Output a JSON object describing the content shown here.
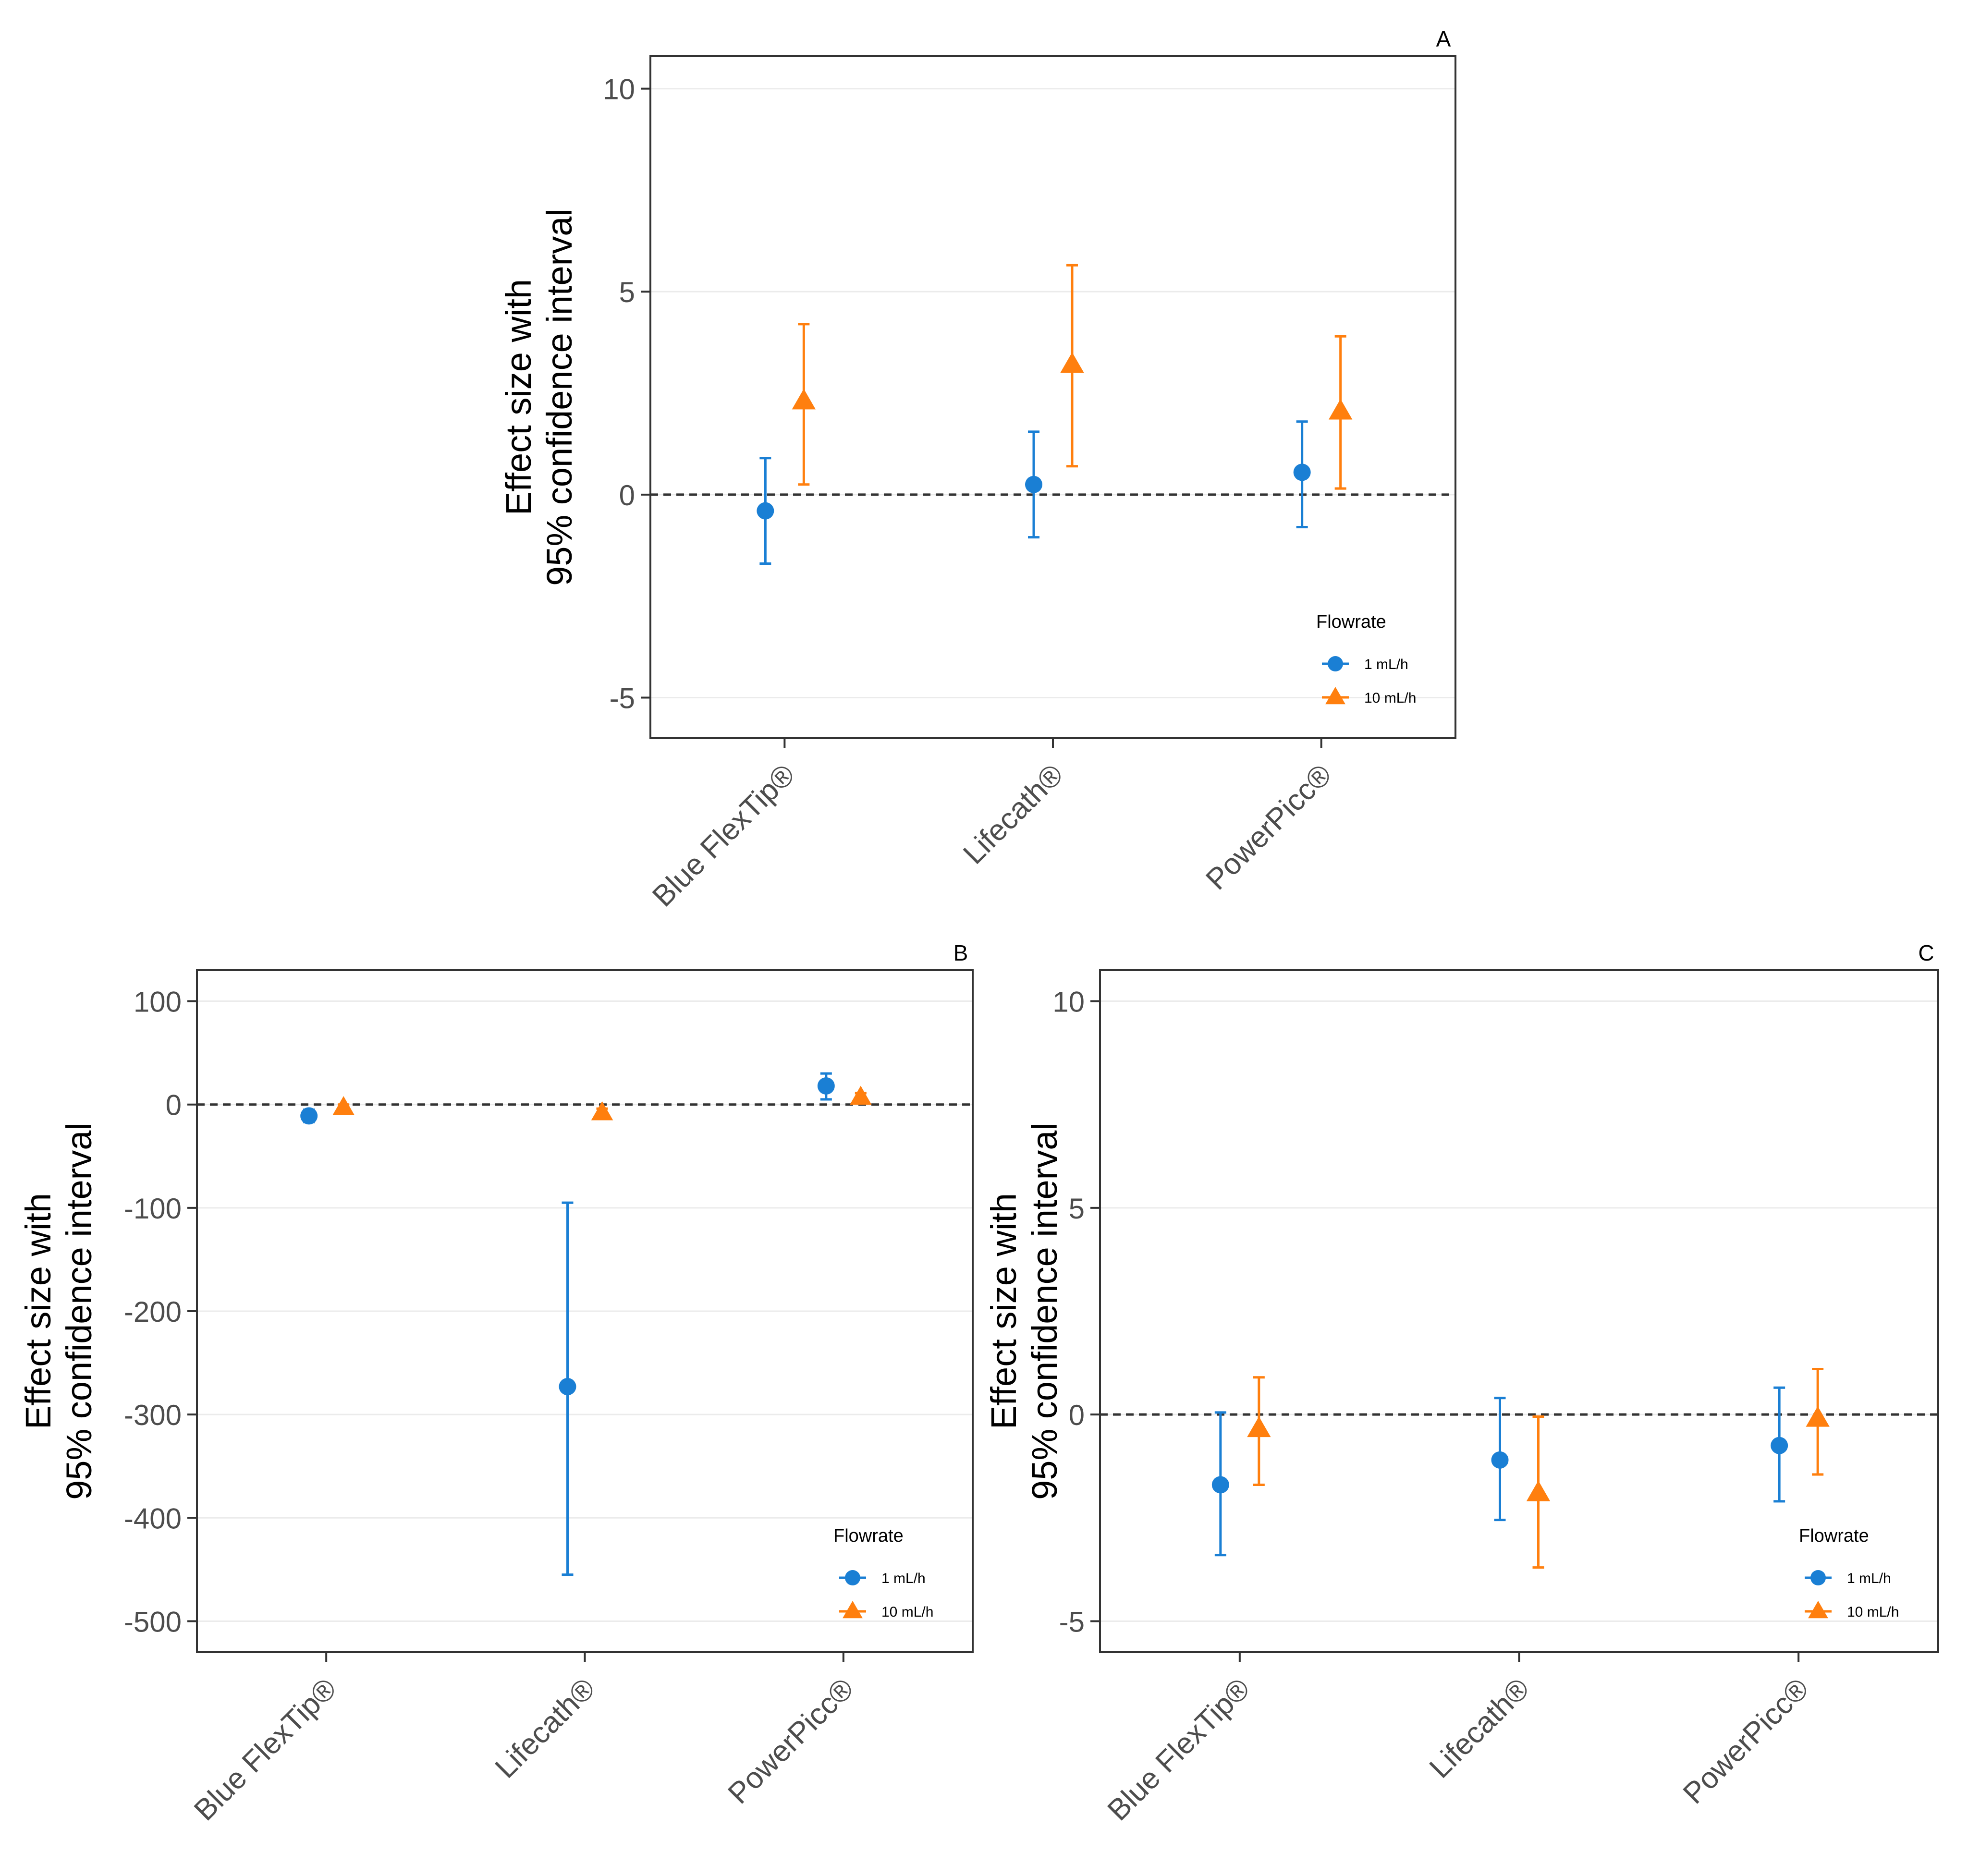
{
  "figure": {
    "panels": [
      "A",
      "B",
      "C"
    ]
  },
  "chart_data": [
    {
      "type": "scatter",
      "subtype": "point-with-error-bars",
      "panel_label": "A",
      "title": "",
      "xlabel": "",
      "ylabel": [
        "Effect size with",
        "95% confidence interval"
      ],
      "categories": [
        "Blue FlexTip®",
        "Lifecath®",
        "PowerPicc®"
      ],
      "ylim": [
        -6.0,
        10.8
      ],
      "yticks": [
        -5,
        0,
        5,
        10
      ],
      "ytick_labels": [
        "-5",
        "0",
        "5",
        "10"
      ],
      "reference_line": 0,
      "grid": true,
      "legend": {
        "title": "Flowrate",
        "placement": "bottom-right"
      },
      "series": [
        {
          "name": "1 mL/h",
          "marker": "circle",
          "color": "#1a7fd4",
          "values": [
            -0.4,
            0.25,
            0.55
          ],
          "lower": [
            -1.7,
            -1.05,
            -0.8
          ],
          "upper": [
            0.9,
            1.55,
            1.8
          ]
        },
        {
          "name": "10 mL/h",
          "marker": "triangle",
          "color": "#ff7f0e",
          "values": [
            2.3,
            3.2,
            2.05
          ],
          "lower": [
            0.25,
            0.7,
            0.15
          ],
          "upper": [
            4.2,
            5.65,
            3.9
          ]
        }
      ]
    },
    {
      "type": "scatter",
      "subtype": "point-with-error-bars",
      "panel_label": "B",
      "title": "",
      "xlabel": "",
      "ylabel": [
        "Effect size with",
        "95% confidence interval"
      ],
      "categories": [
        "Blue FlexTip®",
        "Lifecath®",
        "PowerPicc®"
      ],
      "ylim": [
        -530,
        130
      ],
      "yticks": [
        -500,
        -400,
        -300,
        -200,
        -100,
        0,
        100
      ],
      "ytick_labels": [
        "-500",
        "-400",
        "-300",
        "-200",
        "-100",
        "0",
        "100"
      ],
      "reference_line": 0,
      "grid": true,
      "legend": {
        "title": "Flowrate",
        "placement": "bottom-right"
      },
      "series": [
        {
          "name": "1 mL/h",
          "marker": "circle",
          "color": "#1a7fd4",
          "values": [
            -11,
            -273,
            18
          ],
          "lower": [
            -17,
            -455,
            5
          ],
          "upper": [
            -5,
            -95,
            30
          ]
        },
        {
          "name": "10 mL/h",
          "marker": "triangle",
          "color": "#ff7f0e",
          "values": [
            -3,
            -8,
            7
          ],
          "lower": [
            -6,
            -12,
            3
          ],
          "upper": [
            0,
            -4,
            11
          ]
        }
      ]
    },
    {
      "type": "scatter",
      "subtype": "point-with-error-bars",
      "panel_label": "C",
      "title": "",
      "xlabel": "",
      "ylabel": [
        "Effect size with",
        "95% confidence interval"
      ],
      "categories": [
        "Blue FlexTip®",
        "Lifecath®",
        "PowerPicc®"
      ],
      "ylim": [
        -5.75,
        10.75
      ],
      "yticks": [
        -5,
        0,
        5,
        10
      ],
      "ytick_labels": [
        "-5",
        "0",
        "5",
        "10"
      ],
      "reference_line": 0,
      "grid": true,
      "legend": {
        "title": "Flowrate",
        "placement": "bottom-right"
      },
      "series": [
        {
          "name": "1 mL/h",
          "marker": "circle",
          "color": "#1a7fd4",
          "values": [
            -1.7,
            -1.1,
            -0.75
          ],
          "lower": [
            -3.4,
            -2.55,
            -2.1
          ],
          "upper": [
            0.05,
            0.4,
            0.65
          ]
        },
        {
          "name": "10 mL/h",
          "marker": "triangle",
          "color": "#ff7f0e",
          "values": [
            -0.35,
            -1.9,
            -0.1
          ],
          "lower": [
            -1.7,
            -3.7,
            -1.45
          ],
          "upper": [
            0.9,
            -0.05,
            1.1
          ]
        }
      ]
    }
  ]
}
